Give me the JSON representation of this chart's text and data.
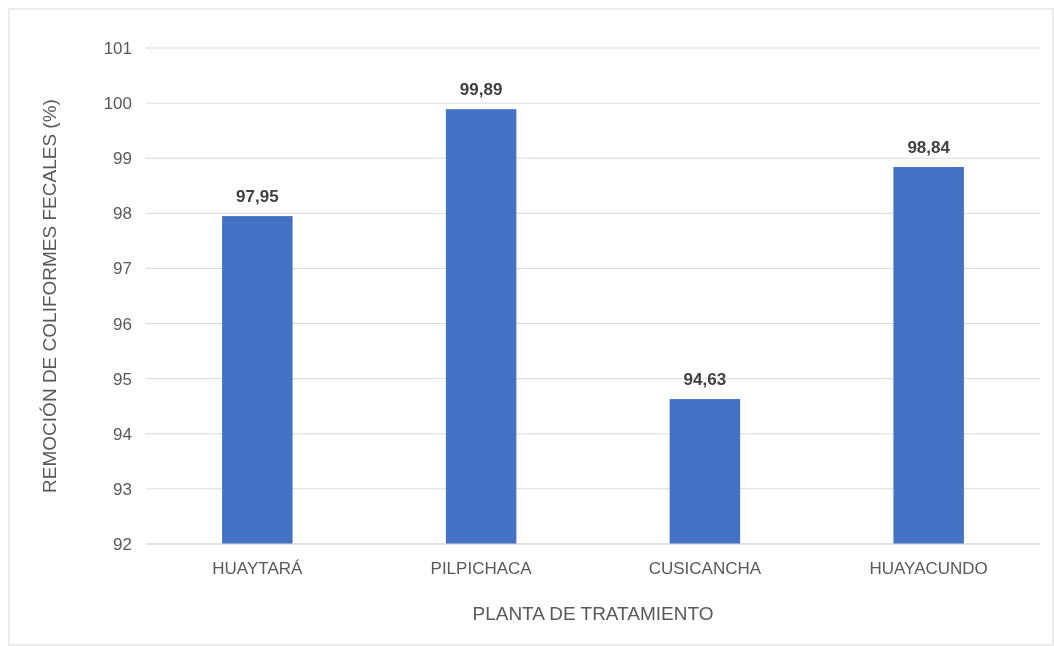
{
  "chart_data": {
    "type": "bar",
    "xlabel": "PLANTA DE TRATAMIENTO",
    "ylabel": "REMOCIÓN DE COLIFORMES FECALES (%)",
    "categories": [
      "HUAYTARÁ",
      "PILPICHACA",
      "CUSICANCHA",
      "HUAYACUNDO"
    ],
    "values": [
      97.95,
      99.89,
      94.63,
      98.84
    ],
    "value_labels": [
      "97,95",
      "99,89",
      "94,63",
      "98,84"
    ],
    "color": "#4472c4",
    "ylim": [
      92,
      101
    ],
    "yticks": [
      92,
      93,
      94,
      95,
      96,
      97,
      98,
      99,
      100,
      101
    ],
    "grid": "y"
  }
}
